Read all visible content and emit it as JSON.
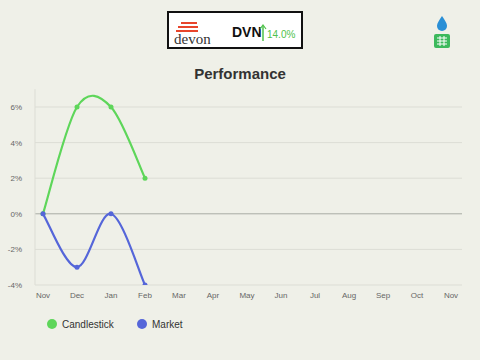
{
  "header": {
    "logo": "devon",
    "ticker": "DVN",
    "change": "14.0%"
  },
  "chart_data": {
    "type": "line",
    "title": "Performance",
    "categories": [
      "Nov",
      "Dec",
      "Jan",
      "Feb",
      "Mar",
      "Apr",
      "May",
      "Jun",
      "Jul",
      "Aug",
      "Sep",
      "Oct",
      "Nov"
    ],
    "series": [
      {
        "name": "Candlestick",
        "color": "#5ed65a",
        "marker": "circle",
        "values": [
          0,
          6,
          6,
          2,
          null,
          null,
          null,
          null,
          null,
          null,
          null,
          null,
          null
        ]
      },
      {
        "name": "Market",
        "color": "#5566d9",
        "marker": "circle",
        "values": [
          0,
          -3,
          0,
          -4,
          null,
          null,
          null,
          null,
          null,
          null,
          null,
          null,
          null
        ]
      }
    ],
    "ylim": [
      -4,
      7
    ],
    "yticks": [
      {
        "value": -4,
        "label": "-4%"
      },
      {
        "value": -2,
        "label": "-2%"
      },
      {
        "value": 0,
        "label": "0%"
      },
      {
        "value": 2,
        "label": "2%"
      },
      {
        "value": 4,
        "label": "4%"
      },
      {
        "value": 6,
        "label": "6%"
      }
    ],
    "grid": true,
    "legend": "bottom-left"
  }
}
